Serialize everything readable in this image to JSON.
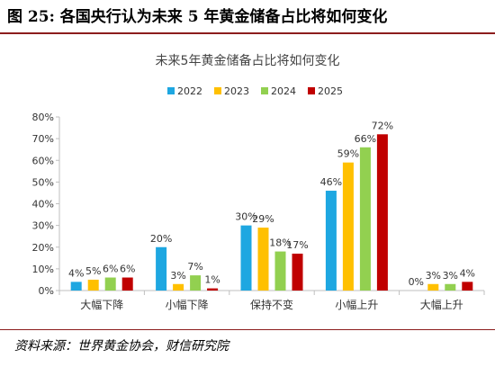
{
  "figure": {
    "title": "图 25: 各国央行认为未来 5 年黄金储备占比将如何变化",
    "source": "资料来源：世界黄金协会，财信研究院"
  },
  "chart_data": {
    "type": "bar",
    "title": "未来5年黄金储备占比将如何变化",
    "categories": [
      "大幅下降",
      "小幅下降",
      "保持不变",
      "小幅上升",
      "大幅上升"
    ],
    "series": [
      {
        "name": "2022",
        "color": "#1ea7e1",
        "values": [
          4,
          20,
          30,
          46,
          0
        ]
      },
      {
        "name": "2023",
        "color": "#ffc000",
        "values": [
          5,
          3,
          29,
          59,
          3
        ]
      },
      {
        "name": "2024",
        "color": "#92d050",
        "values": [
          6,
          7,
          18,
          66,
          3
        ]
      },
      {
        "name": "2025",
        "color": "#c00000",
        "values": [
          6,
          1,
          17,
          72,
          4
        ]
      }
    ],
    "ylim": [
      0,
      80
    ],
    "yticks": [
      0,
      10,
      20,
      30,
      40,
      50,
      60,
      70,
      80
    ],
    "value_suffix": "%",
    "legend_position": "top",
    "grid": false
  }
}
